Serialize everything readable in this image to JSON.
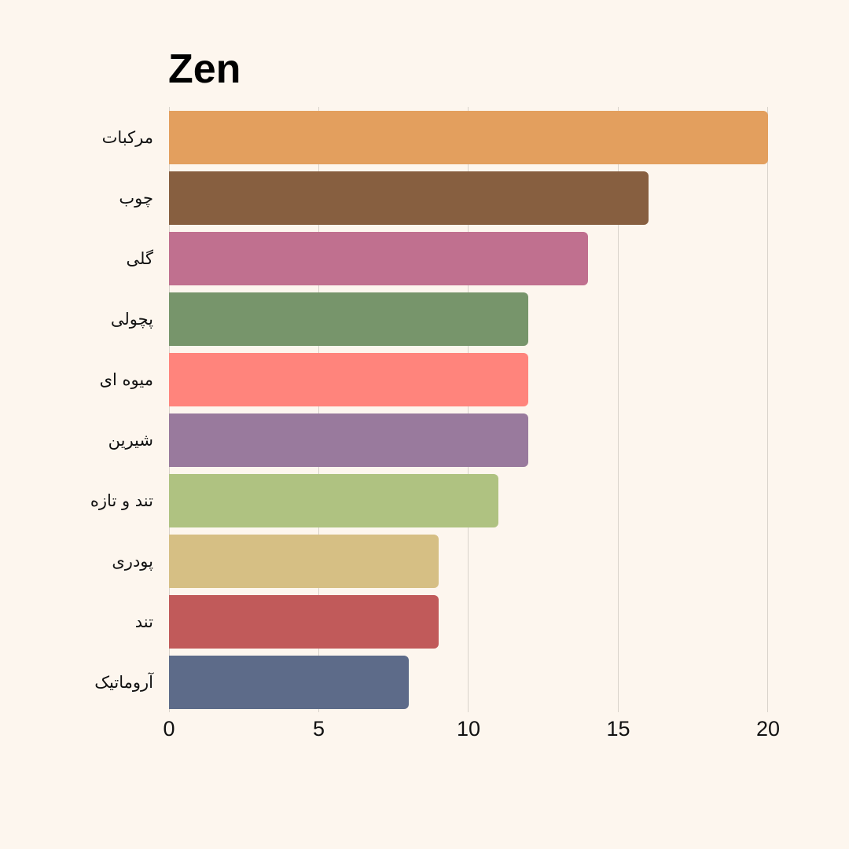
{
  "chart_data": {
    "type": "bar",
    "orientation": "horizontal",
    "title": "Zen",
    "xlabel": "",
    "ylabel": "",
    "xlim": [
      0,
      20
    ],
    "xticks": [
      0,
      5,
      10,
      15,
      20
    ],
    "grid": true,
    "legend": "none",
    "categories": [
      "مرکبات",
      "چوب",
      "گلی",
      "پچولی",
      "میوه ای",
      "شیرین",
      "تند و تازه",
      "پودری",
      "تند",
      "آروماتیک"
    ],
    "values": [
      20,
      16,
      14,
      12,
      12,
      12,
      11,
      9,
      9,
      8
    ],
    "colors": [
      "#e39f5e",
      "#875f40",
      "#c0708f",
      "#77956b",
      "#ff847c",
      "#997a9d",
      "#afc281",
      "#d6bf84",
      "#c15a5a",
      "#5d6b89"
    ]
  },
  "background": "#fdf6ee",
  "gridline_color": "#d9d3cb"
}
